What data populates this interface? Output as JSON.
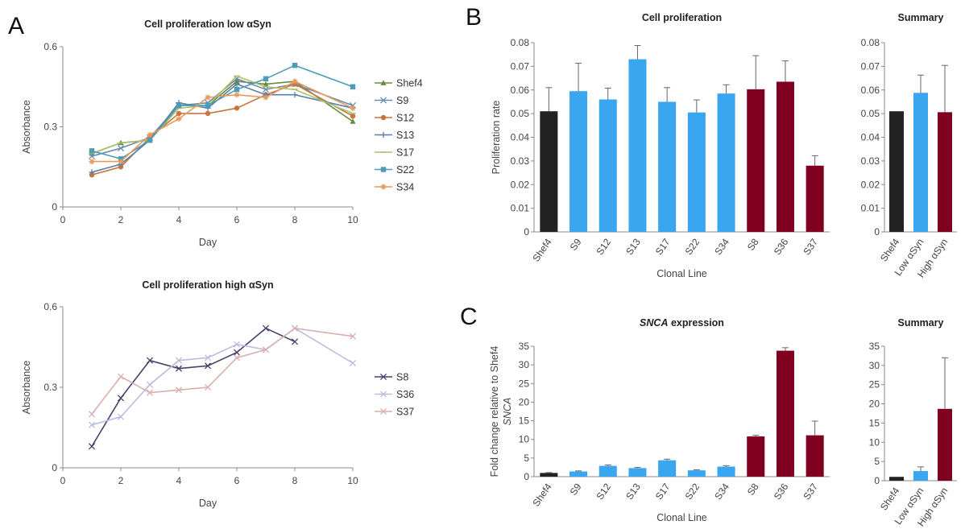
{
  "panels": {
    "a": "A",
    "b": "B",
    "c": "C"
  },
  "colors": {
    "shef4": "#222222",
    "low": "#3aa6ef",
    "high": "#800020"
  },
  "chart_data": [
    {
      "id": "line_low",
      "type": "line",
      "title": "Cell proliferation low αSyn",
      "xlabel": "Day",
      "ylabel": "Absorbance",
      "xlim": [
        0,
        10
      ],
      "ylim": [
        0,
        0.6
      ],
      "xticks": [
        "0",
        "2",
        "4",
        "6",
        "8",
        "10"
      ],
      "yticks": [
        "0",
        "0.3",
        "0.6"
      ],
      "legend": "right",
      "x": [
        1,
        2,
        3,
        4,
        5,
        6,
        7,
        8,
        10
      ],
      "series": [
        {
          "name": "Shef4",
          "color": "#6c8a3c",
          "marker": "triangle",
          "values": [
            0.2,
            0.24,
            0.25,
            0.38,
            0.38,
            0.47,
            0.46,
            0.47,
            0.32
          ]
        },
        {
          "name": "S9",
          "color": "#6a8bb0",
          "marker": "x",
          "values": [
            0.19,
            0.22,
            0.26,
            0.38,
            0.39,
            0.48,
            0.44,
            0.46,
            0.38
          ]
        },
        {
          "name": "S12",
          "color": "#c8743f",
          "marker": "circle",
          "values": [
            0.12,
            0.15,
            0.26,
            0.35,
            0.35,
            0.37,
            0.42,
            0.46,
            0.34
          ]
        },
        {
          "name": "S13",
          "color": "#5d7ea8",
          "marker": "plus",
          "values": [
            0.13,
            0.16,
            0.25,
            0.39,
            0.37,
            0.46,
            0.42,
            0.42,
            0.37
          ]
        },
        {
          "name": "S17",
          "color": "#a7c36b",
          "marker": "dash",
          "values": [
            0.2,
            0.24,
            0.25,
            0.37,
            0.38,
            0.49,
            0.45,
            0.44,
            0.35
          ]
        },
        {
          "name": "S22",
          "color": "#4b9cb6",
          "marker": "square",
          "values": [
            0.21,
            0.18,
            0.25,
            0.38,
            0.38,
            0.44,
            0.48,
            0.53,
            0.45
          ]
        },
        {
          "name": "S34",
          "color": "#e69a5c",
          "marker": "star",
          "values": [
            0.17,
            0.17,
            0.27,
            0.33,
            0.41,
            0.42,
            0.41,
            0.47,
            0.37
          ]
        }
      ]
    },
    {
      "id": "line_high",
      "type": "line",
      "title": "Cell proliferation high αSyn",
      "xlabel": "Day",
      "ylabel": "Absorbance",
      "xlim": [
        0,
        10
      ],
      "ylim": [
        0,
        0.6
      ],
      "xticks": [
        "0",
        "2",
        "4",
        "6",
        "8",
        "10"
      ],
      "yticks": [
        "0",
        "0.3",
        "0.6"
      ],
      "legend": "right",
      "x": [
        1,
        2,
        3,
        4,
        5,
        6,
        7,
        8,
        10
      ],
      "series": [
        {
          "name": "S8",
          "color": "#4a3f6b",
          "marker": "x",
          "values": [
            0.08,
            0.26,
            0.4,
            0.37,
            0.38,
            0.43,
            0.52,
            0.47,
            null
          ]
        },
        {
          "name": "S36",
          "color": "#b9bdde",
          "marker": "x",
          "values": [
            0.16,
            0.19,
            0.31,
            0.4,
            0.41,
            0.46,
            0.44,
            0.52,
            0.39
          ]
        },
        {
          "name": "S37",
          "color": "#dcaeae",
          "marker": "x",
          "values": [
            0.2,
            0.34,
            0.28,
            0.29,
            0.3,
            0.41,
            0.44,
            0.52,
            0.49
          ]
        }
      ]
    },
    {
      "id": "bar_prolif",
      "type": "bar",
      "title": "Cell proliferation",
      "xlabel": "Clonal Line",
      "ylabel": "Proliferation rate",
      "ylim": [
        0,
        0.08
      ],
      "yticks": [
        "0",
        "0.01",
        "0.02",
        "0.03",
        "0.04",
        "0.05",
        "0.06",
        "0.07",
        "0.08"
      ],
      "categories": [
        "Shef4",
        "S9",
        "S12",
        "S13",
        "S17",
        "S22",
        "S34",
        "S8",
        "S36",
        "S37"
      ],
      "groups": [
        "shef4",
        "low",
        "low",
        "low",
        "low",
        "low",
        "low",
        "high",
        "high",
        "high"
      ],
      "values": [
        0.051,
        0.0595,
        0.056,
        0.073,
        0.055,
        0.0505,
        0.0585,
        0.0603,
        0.0635,
        0.028
      ],
      "errors": [
        0.01,
        0.0118,
        0.0048,
        0.0058,
        0.006,
        0.0053,
        0.0037,
        0.0142,
        0.0088,
        0.0042
      ]
    },
    {
      "id": "bar_prolif_summary",
      "type": "bar",
      "title": "Summary",
      "ylim": [
        0,
        0.08
      ],
      "yticks": [
        "0",
        "0.01",
        "0.02",
        "0.03",
        "0.04",
        "0.05",
        "0.06",
        "0.07",
        "0.08"
      ],
      "categories": [
        "Shef4",
        "Low αSyn",
        "High αSyn"
      ],
      "groups": [
        "shef4",
        "low",
        "high"
      ],
      "values": [
        0.051,
        0.0588,
        0.0506
      ],
      "errors": [
        0,
        0.0075,
        0.0198
      ]
    },
    {
      "id": "bar_snca",
      "type": "bar",
      "title": " expression",
      "title_italic": "SNCA",
      "xlabel": "Clonal Line",
      "ylabel": "Fold change relative to Shef4",
      "ylabel2": "SNCA",
      "ylim": [
        0,
        35
      ],
      "yticks": [
        "0",
        "5",
        "10",
        "15",
        "20",
        "25",
        "30",
        "35"
      ],
      "categories": [
        "Shef4",
        "S9",
        "S12",
        "S13",
        "S17",
        "S22",
        "S34",
        "S8",
        "S36",
        "S37"
      ],
      "groups": [
        "shef4",
        "low",
        "low",
        "low",
        "low",
        "low",
        "low",
        "high",
        "high",
        "high"
      ],
      "values": [
        1.0,
        1.4,
        2.9,
        2.3,
        4.4,
        1.7,
        2.7,
        10.8,
        33.8,
        11.1
      ],
      "errors": [
        0.1,
        0.15,
        0.25,
        0.2,
        0.3,
        0.15,
        0.25,
        0.3,
        0.8,
        3.8
      ]
    },
    {
      "id": "bar_snca_summary",
      "type": "bar",
      "title": "Summary",
      "ylim": [
        0,
        35
      ],
      "yticks": [
        "0",
        "5",
        "10",
        "15",
        "20",
        "25",
        "30",
        "35"
      ],
      "categories": [
        "Shef4",
        "Low αSyn",
        "High αSyn"
      ],
      "groups": [
        "shef4",
        "low",
        "high"
      ],
      "values": [
        1.0,
        2.5,
        18.7
      ],
      "errors": [
        0,
        1.1,
        13.3
      ]
    }
  ]
}
